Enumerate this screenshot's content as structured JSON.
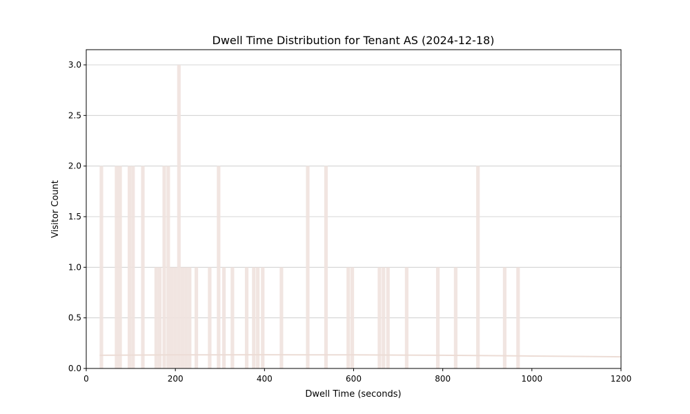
{
  "chart_data": {
    "type": "bar",
    "title": "Dwell Time Distribution for Tenant AS (2024-12-18)",
    "xlabel": "Dwell Time (seconds)",
    "ylabel": "Visitor Count",
    "xlim": [
      0,
      1200
    ],
    "ylim": [
      0,
      3.15
    ],
    "xticks": [
      0,
      200,
      400,
      600,
      800,
      1000,
      1200
    ],
    "yticks": [
      0.0,
      0.5,
      1.0,
      1.5,
      2.0,
      2.5,
      3.0
    ],
    "grid": "horizontal",
    "bin_width": 8,
    "bins": [
      {
        "x": 30,
        "count": 2
      },
      {
        "x": 64,
        "count": 2
      },
      {
        "x": 72,
        "count": 2
      },
      {
        "x": 93,
        "count": 2
      },
      {
        "x": 101,
        "count": 2
      },
      {
        "x": 123,
        "count": 2
      },
      {
        "x": 153,
        "count": 1
      },
      {
        "x": 161,
        "count": 1
      },
      {
        "x": 171,
        "count": 2
      },
      {
        "x": 180,
        "count": 2
      },
      {
        "x": 188,
        "count": 1
      },
      {
        "x": 196,
        "count": 1
      },
      {
        "x": 204,
        "count": 3
      },
      {
        "x": 212,
        "count": 1
      },
      {
        "x": 220,
        "count": 1
      },
      {
        "x": 228,
        "count": 1
      },
      {
        "x": 243,
        "count": 1
      },
      {
        "x": 273,
        "count": 1
      },
      {
        "x": 293,
        "count": 2
      },
      {
        "x": 305,
        "count": 1
      },
      {
        "x": 324,
        "count": 1
      },
      {
        "x": 356,
        "count": 1
      },
      {
        "x": 372,
        "count": 1
      },
      {
        "x": 381,
        "count": 1
      },
      {
        "x": 392,
        "count": 1
      },
      {
        "x": 434,
        "count": 1
      },
      {
        "x": 493,
        "count": 2
      },
      {
        "x": 534,
        "count": 2
      },
      {
        "x": 584,
        "count": 1
      },
      {
        "x": 593,
        "count": 1
      },
      {
        "x": 654,
        "count": 1
      },
      {
        "x": 663,
        "count": 1
      },
      {
        "x": 673,
        "count": 1
      },
      {
        "x": 715,
        "count": 1
      },
      {
        "x": 785,
        "count": 1
      },
      {
        "x": 825,
        "count": 1
      },
      {
        "x": 875,
        "count": 2
      },
      {
        "x": 935,
        "count": 1
      },
      {
        "x": 965,
        "count": 1
      }
    ],
    "density_curve": {
      "x": [
        30,
        100,
        200,
        300,
        400,
        500,
        600,
        700,
        800,
        900,
        1000,
        1100,
        1200
      ],
      "y": [
        0.13,
        0.132,
        0.134,
        0.135,
        0.136,
        0.135,
        0.134,
        0.132,
        0.13,
        0.127,
        0.123,
        0.119,
        0.115
      ]
    },
    "colors": {
      "bars": "#efe2de",
      "density": "#ecdcd5",
      "grid": "#b0b0b0"
    }
  }
}
